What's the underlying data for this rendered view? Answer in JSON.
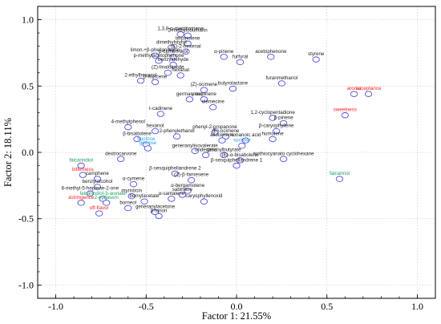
{
  "chart_data": {
    "type": "scatter",
    "xlabel": "Factor 1: 21.55%",
    "ylabel": "Factor 2: 18.11%",
    "xlim": [
      -1.1,
      1.1
    ],
    "ylim": [
      -1.1,
      1.1
    ],
    "x_ticks": [
      "-1.0",
      "-0.5",
      "0.0",
      "0.5",
      "1.0"
    ],
    "y_ticks": [
      "1.0",
      "0.5",
      "0.0",
      "-0.5",
      "-1.0"
    ],
    "x_tick_values": [
      -1.0,
      -0.5,
      0.0,
      0.5,
      1.0
    ],
    "y_tick_values": [
      1.0,
      0.5,
      0.0,
      -0.5,
      -1.0
    ],
    "grid": true,
    "colors": {
      "marker": "#4d4de0",
      "volatile": "#1a1a1a",
      "sensory": "#ff2020",
      "sugar": "#1ea0e0",
      "stimulus": "#20a060"
    },
    "points": [
      {
        "label": "2-methylcoumarin",
        "x": -0.27,
        "y": 0.88,
        "group": "volatile"
      },
      {
        "label": "1,3,8-p-menthatriene",
        "x": -0.31,
        "y": 0.89,
        "group": "volatile"
      },
      {
        "label": "terpinolene",
        "x": -0.27,
        "y": 0.82,
        "group": "volatile"
      },
      {
        "label": "dimethylstyrol",
        "x": -0.36,
        "y": 0.79,
        "group": "volatile"
      },
      {
        "label": "(E)-2-hexenal",
        "x": -0.28,
        "y": 0.76,
        "group": "volatile"
      },
      {
        "label": "limon.+β-phellandrene",
        "x": -0.45,
        "y": 0.73,
        "group": "volatile"
      },
      {
        "label": "p-cymen-8-ol",
        "x": -0.35,
        "y": 0.72,
        "group": "volatile"
      },
      {
        "label": "p-methylacetophenone",
        "x": -0.43,
        "y": 0.69,
        "group": "volatile"
      },
      {
        "label": "benzyldehyde",
        "x": -0.35,
        "y": 0.66,
        "group": "volatile"
      },
      {
        "label": "(Z)-linaloloxide",
        "x": -0.38,
        "y": 0.6,
        "group": "volatile"
      },
      {
        "label": "hexanal",
        "x": -0.31,
        "y": 0.58,
        "group": "volatile"
      },
      {
        "label": "2-ethylhexanol",
        "x": -0.53,
        "y": 0.54,
        "group": "volatile"
      },
      {
        "label": "β-myrcene",
        "x": -0.45,
        "y": 0.53,
        "group": "volatile"
      },
      {
        "label": "(Z)-ocimene",
        "x": -0.18,
        "y": 0.47,
        "group": "volatile"
      },
      {
        "label": "germacrene",
        "x": -0.26,
        "y": 0.4,
        "group": "volatile"
      },
      {
        "label": "γ-terpinene",
        "x": -0.18,
        "y": 0.4,
        "group": "volatile"
      },
      {
        "label": "elemecine",
        "x": -0.13,
        "y": 0.34,
        "group": "volatile"
      },
      {
        "label": "α-pinene",
        "x": -0.07,
        "y": 0.72,
        "group": "volatile"
      },
      {
        "label": "furfural",
        "x": 0.02,
        "y": 0.68,
        "group": "volatile"
      },
      {
        "label": "acetophenone",
        "x": 0.19,
        "y": 0.72,
        "group": "volatile"
      },
      {
        "label": "styrene",
        "x": 0.44,
        "y": 0.7,
        "group": "volatile"
      },
      {
        "label": "furanmethanol",
        "x": 0.25,
        "y": 0.52,
        "group": "volatile"
      },
      {
        "label": "butyrolactone",
        "x": -0.02,
        "y": 0.48,
        "group": "volatile"
      },
      {
        "label": "τ-cadinene",
        "x": -0.42,
        "y": 0.29,
        "group": "volatile"
      },
      {
        "label": "4-methylphenol",
        "x": -0.6,
        "y": 0.19,
        "group": "volatile"
      },
      {
        "label": "hexanol",
        "x": -0.45,
        "y": 0.16,
        "group": "volatile"
      },
      {
        "label": "2-phenylethanol",
        "x": -0.33,
        "y": 0.12,
        "group": "volatile"
      },
      {
        "label": "β-bisabolene",
        "x": -0.55,
        "y": 0.1,
        "group": "volatile"
      },
      {
        "label": "phenyl-2-propanone",
        "x": -0.12,
        "y": 0.15,
        "group": "volatile"
      },
      {
        "label": "(E)-ocimene",
        "x": -0.06,
        "y": 0.12,
        "group": "volatile"
      },
      {
        "label": "allocimene",
        "x": -0.08,
        "y": 0.09,
        "group": "volatile"
      },
      {
        "label": "nonanoic acid",
        "x": 0.05,
        "y": 0.09,
        "group": "volatile"
      },
      {
        "label": "1,2-cyclopentadione",
        "x": 0.2,
        "y": 0.26,
        "group": "volatile"
      },
      {
        "label": "β-pinene",
        "x": 0.26,
        "y": 0.22,
        "group": "volatile"
      },
      {
        "label": "β-caryophyllene",
        "x": 0.22,
        "y": 0.16,
        "group": "volatile"
      },
      {
        "label": "humulene",
        "x": 0.2,
        "y": 0.1,
        "group": "volatile"
      },
      {
        "label": "isothiocyanato cyclohexane",
        "x": 0.26,
        "y": -0.05,
        "group": "volatile"
      },
      {
        "label": "geranylbutyrate",
        "x": -0.07,
        "y": -0.02,
        "group": "volatile"
      },
      {
        "label": "(E)-α-bisabolene",
        "x": 0.02,
        "y": -0.06,
        "group": "volatile"
      },
      {
        "label": "β-sesquiphellandrene 1",
        "x": 0.0,
        "y": -0.1,
        "group": "volatile"
      },
      {
        "label": "generanylisovalerate",
        "x": -0.23,
        "y": 0.01,
        "group": "volatile"
      },
      {
        "label": "undecane",
        "x": -0.17,
        "y": -0.02,
        "group": "volatile"
      },
      {
        "label": "dextrocarvone",
        "x": -0.64,
        "y": -0.05,
        "group": "volatile"
      },
      {
        "label": "β-sesquiphellandrene 2",
        "x": -0.34,
        "y": -0.16,
        "group": "volatile"
      },
      {
        "label": "(Z)-β-farnesene",
        "x": -0.25,
        "y": -0.21,
        "group": "volatile"
      },
      {
        "label": "camphene",
        "x": -0.77,
        "y": -0.2,
        "group": "volatile"
      },
      {
        "label": "α-cymene",
        "x": -0.57,
        "y": -0.24,
        "group": "volatile"
      },
      {
        "label": "benzylalcohol",
        "x": -0.77,
        "y": -0.26,
        "group": "volatile"
      },
      {
        "label": "6-methyl-5-heptene-2-one",
        "x": -0.81,
        "y": -0.31,
        "group": "volatile"
      },
      {
        "label": "myristicin",
        "x": -0.58,
        "y": -0.33,
        "group": "volatile"
      },
      {
        "label": "bornylacetate",
        "x": -0.51,
        "y": -0.37,
        "group": "volatile"
      },
      {
        "label": "borneol",
        "x": -0.6,
        "y": -0.42,
        "group": "volatile"
      },
      {
        "label": "α-bergamotene",
        "x": -0.27,
        "y": -0.29,
        "group": "volatile"
      },
      {
        "label": "sabinene",
        "x": -0.3,
        "y": -0.32,
        "group": "volatile"
      },
      {
        "label": "α-santalene",
        "x": -0.36,
        "y": -0.35,
        "group": "volatile"
      },
      {
        "label": "caryophyllenoxid",
        "x": -0.18,
        "y": -0.37,
        "group": "volatile"
      },
      {
        "label": "generanylacetone",
        "x": -0.45,
        "y": -0.45,
        "group": "volatile"
      },
      {
        "label": "β-ionon",
        "x": -0.43,
        "y": -0.48,
        "group": "volatile"
      },
      {
        "label": "aroma",
        "x": 0.65,
        "y": 0.44,
        "group": "sensory"
      },
      {
        "label": "acceptance",
        "x": 0.73,
        "y": 0.44,
        "group": "sensory"
      },
      {
        "label": "sweetness",
        "x": 0.6,
        "y": 0.28,
        "group": "sensory"
      },
      {
        "label": "bitterness",
        "x": -0.85,
        "y": -0.17,
        "group": "sensory"
      },
      {
        "label": "astringence",
        "x": -0.86,
        "y": -0.38,
        "group": "sensory"
      },
      {
        "label": "off-flavor",
        "x": -0.76,
        "y": -0.46,
        "group": "sensory"
      },
      {
        "label": "fructose",
        "x": -0.5,
        "y": 0.06,
        "group": "sugar"
      },
      {
        "label": "glucose",
        "x": -0.49,
        "y": 0.03,
        "group": "sugar"
      },
      {
        "label": "sucrose",
        "x": 0.03,
        "y": 0.05,
        "group": "sugar"
      },
      {
        "label": "falcarindiol",
        "x": -0.86,
        "y": -0.1,
        "group": "stimulus"
      },
      {
        "label": "falcarindiol-3-acetate",
        "x": -0.74,
        "y": -0.35,
        "group": "stimulus"
      },
      {
        "label": "2-epilasem",
        "x": -0.72,
        "y": -0.38,
        "group": "stimulus"
      },
      {
        "label": "falcarinol",
        "x": 0.57,
        "y": -0.2,
        "group": "stimulus"
      }
    ]
  }
}
